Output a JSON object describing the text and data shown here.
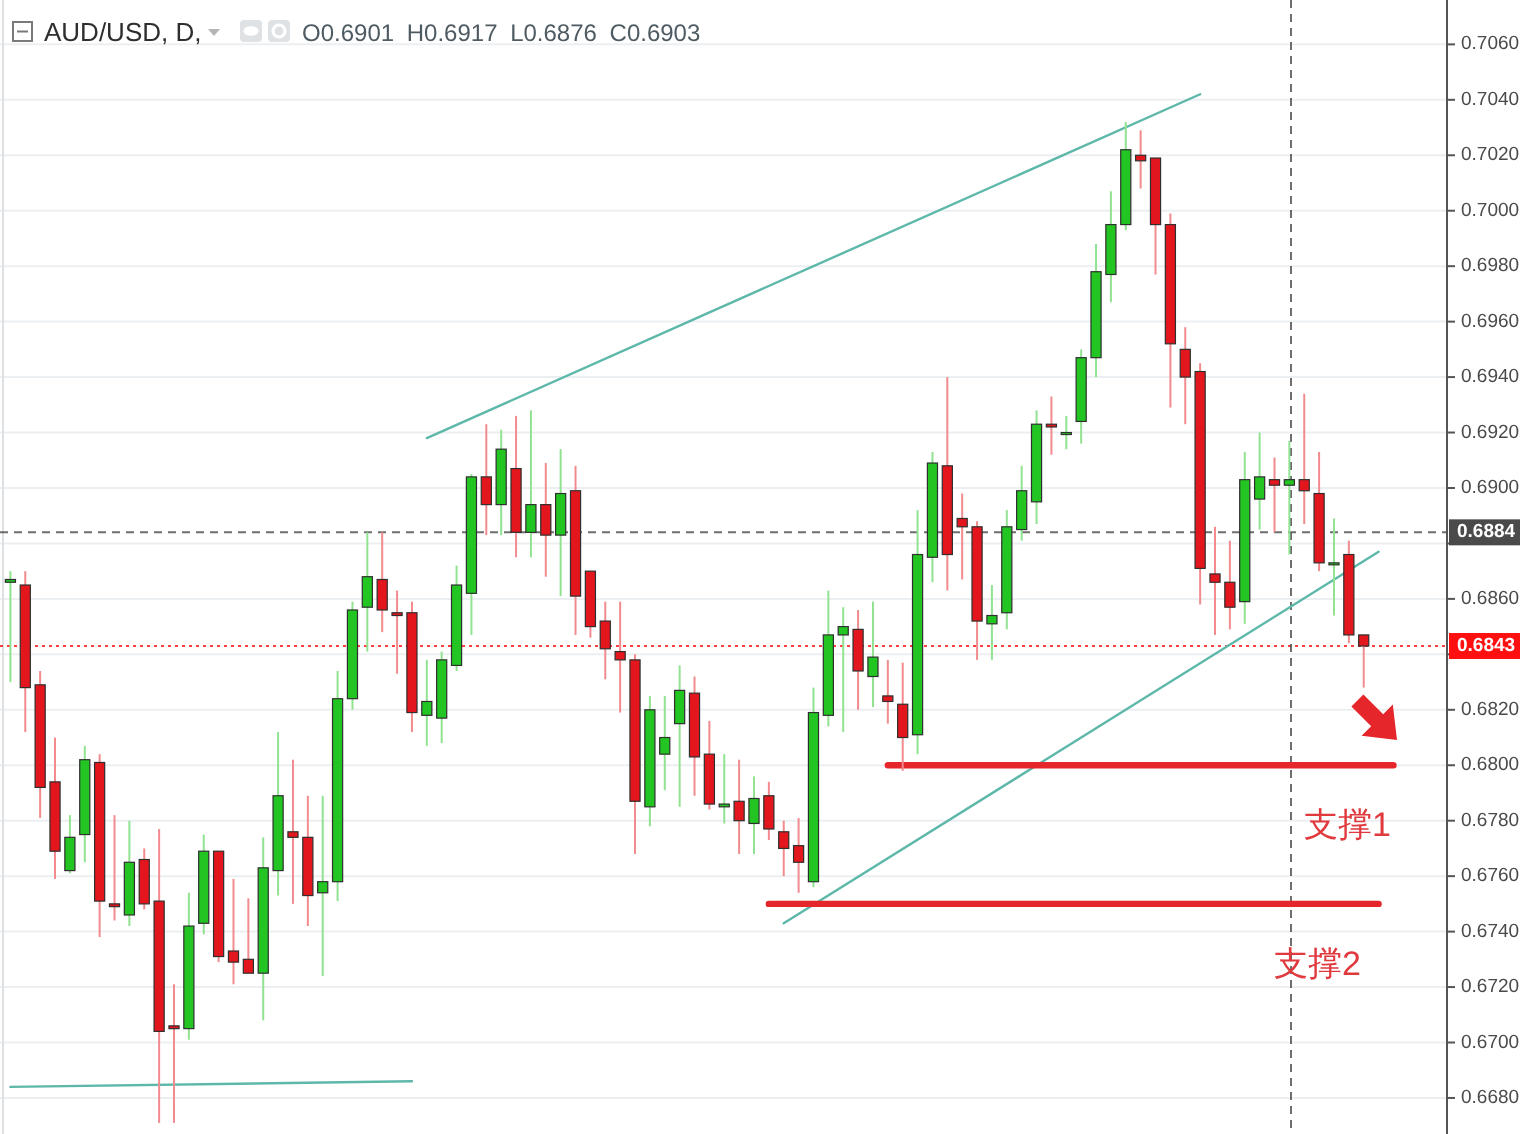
{
  "chart_data": {
    "type": "candlestick",
    "title": "AUD/USD, D,",
    "subtitle": "O0.6901 H0.6917 L0.6876 C0.6903",
    "categories": [
      null,
      null,
      null,
      null,
      null,
      null,
      null,
      null,
      null,
      null,
      null,
      null,
      null,
      null,
      null,
      null,
      null,
      null,
      null,
      null,
      null,
      null,
      null,
      null,
      null,
      null,
      null,
      null,
      null,
      null,
      null,
      null,
      null,
      null,
      null,
      null,
      null,
      null,
      null,
      null,
      null,
      null,
      null,
      null,
      null,
      null,
      null,
      null,
      null,
      null,
      null,
      null,
      null,
      null,
      null,
      null,
      null,
      null,
      null,
      null,
      null,
      null,
      null,
      null,
      null,
      null,
      null,
      null,
      null,
      null,
      null,
      null,
      null,
      null,
      null,
      null,
      null,
      null,
      null,
      null,
      null,
      null,
      null,
      null,
      null,
      null,
      null,
      null,
      null,
      null,
      null,
      null,
      null,
      null,
      null,
      null,
      null
    ],
    "ohlc": [
      [
        0.6866,
        0.687,
        0.683,
        0.6867
      ],
      [
        0.6865,
        0.687,
        0.6812,
        0.6828
      ],
      [
        0.6829,
        0.6834,
        0.6781,
        0.6792
      ],
      [
        0.6794,
        0.681,
        0.6759,
        0.6769
      ],
      [
        0.6762,
        0.6782,
        0.6761,
        0.6774
      ],
      [
        0.6775,
        0.6807,
        0.6765,
        0.6802
      ],
      [
        0.6801,
        0.6804,
        0.6738,
        0.6751
      ],
      [
        0.675,
        0.6782,
        0.6744,
        0.6749
      ],
      [
        0.6746,
        0.678,
        0.6742,
        0.6765
      ],
      [
        0.6766,
        0.677,
        0.6748,
        0.675
      ],
      [
        0.6751,
        0.6777,
        0.6671,
        0.6704
      ],
      [
        0.6706,
        0.6721,
        0.6671,
        0.6705
      ],
      [
        0.6705,
        0.6754,
        0.6701,
        0.6742
      ],
      [
        0.6743,
        0.6775,
        0.6739,
        0.6769
      ],
      [
        0.6769,
        0.6769,
        0.6729,
        0.6731
      ],
      [
        0.6733,
        0.6759,
        0.6721,
        0.6729
      ],
      [
        0.673,
        0.6752,
        0.6725,
        0.6725
      ],
      [
        0.6725,
        0.6774,
        0.6708,
        0.6763
      ],
      [
        0.6762,
        0.6812,
        0.6753,
        0.6789
      ],
      [
        0.6776,
        0.6802,
        0.675,
        0.6774
      ],
      [
        0.6774,
        0.6789,
        0.6742,
        0.6753
      ],
      [
        0.6754,
        0.6789,
        0.6724,
        0.6758
      ],
      [
        0.6758,
        0.6834,
        0.6751,
        0.6824
      ],
      [
        0.6824,
        0.6859,
        0.682,
        0.6856
      ],
      [
        0.6857,
        0.6884,
        0.6841,
        0.6868
      ],
      [
        0.6867,
        0.6884,
        0.6848,
        0.6856
      ],
      [
        0.6855,
        0.6863,
        0.6833,
        0.6854
      ],
      [
        0.6855,
        0.6859,
        0.6812,
        0.6819
      ],
      [
        0.6818,
        0.6838,
        0.6807,
        0.6823
      ],
      [
        0.6817,
        0.6841,
        0.6808,
        0.6838
      ],
      [
        0.6836,
        0.6872,
        0.6834,
        0.6865
      ],
      [
        0.6862,
        0.6905,
        0.6847,
        0.6904
      ],
      [
        0.6904,
        0.6923,
        0.6883,
        0.6894
      ],
      [
        0.6894,
        0.6921,
        0.6883,
        0.6914
      ],
      [
        0.6907,
        0.6926,
        0.6875,
        0.6884
      ],
      [
        0.6884,
        0.6928,
        0.6875,
        0.6894
      ],
      [
        0.6894,
        0.6909,
        0.6868,
        0.6883
      ],
      [
        0.6883,
        0.6914,
        0.6861,
        0.6898
      ],
      [
        0.6899,
        0.6908,
        0.6847,
        0.6861
      ],
      [
        0.687,
        0.687,
        0.6846,
        0.685
      ],
      [
        0.6852,
        0.6859,
        0.6831,
        0.6842
      ],
      [
        0.6841,
        0.6859,
        0.6819,
        0.6838
      ],
      [
        0.6838,
        0.684,
        0.6768,
        0.6787
      ],
      [
        0.6785,
        0.6825,
        0.6778,
        0.682
      ],
      [
        0.6804,
        0.6825,
        0.6791,
        0.681
      ],
      [
        0.6815,
        0.6836,
        0.6785,
        0.6827
      ],
      [
        0.6826,
        0.6832,
        0.6789,
        0.6803
      ],
      [
        0.6804,
        0.6816,
        0.6784,
        0.6786
      ],
      [
        0.6785,
        0.6804,
        0.6779,
        0.6786
      ],
      [
        0.6787,
        0.6802,
        0.6768,
        0.678
      ],
      [
        0.6779,
        0.6796,
        0.6768,
        0.6788
      ],
      [
        0.6789,
        0.6794,
        0.6773,
        0.6777
      ],
      [
        0.6776,
        0.678,
        0.676,
        0.677
      ],
      [
        0.6771,
        0.6781,
        0.6754,
        0.6765
      ],
      [
        0.6758,
        0.6828,
        0.6756,
        0.6819
      ],
      [
        0.6818,
        0.6863,
        0.6814,
        0.6847
      ],
      [
        0.6847,
        0.6857,
        0.6812,
        0.685
      ],
      [
        0.6849,
        0.6856,
        0.682,
        0.6834
      ],
      [
        0.6832,
        0.6859,
        0.6821,
        0.6839
      ],
      [
        0.6825,
        0.6838,
        0.6815,
        0.6823
      ],
      [
        0.6822,
        0.6837,
        0.6798,
        0.681
      ],
      [
        0.6811,
        0.6892,
        0.6804,
        0.6876
      ],
      [
        0.6875,
        0.6913,
        0.6866,
        0.6909
      ],
      [
        0.6908,
        0.694,
        0.6863,
        0.6876
      ],
      [
        0.6889,
        0.6898,
        0.6867,
        0.6886
      ],
      [
        0.6886,
        0.6888,
        0.6838,
        0.6852
      ],
      [
        0.6851,
        0.6865,
        0.6838,
        0.6854
      ],
      [
        0.6855,
        0.6892,
        0.6849,
        0.6886
      ],
      [
        0.6885,
        0.6908,
        0.6881,
        0.6899
      ],
      [
        0.6895,
        0.6928,
        0.6887,
        0.6923
      ],
      [
        0.6923,
        0.6933,
        0.6912,
        0.6922
      ],
      [
        0.692,
        0.6926,
        0.6914,
        0.692
      ],
      [
        0.6924,
        0.695,
        0.6916,
        0.6947
      ],
      [
        0.6947,
        0.6988,
        0.694,
        0.6978
      ],
      [
        0.6977,
        0.7007,
        0.6967,
        0.6995
      ],
      [
        0.6995,
        0.7032,
        0.6993,
        0.7022
      ],
      [
        0.702,
        0.7029,
        0.7008,
        0.7018
      ],
      [
        0.7019,
        0.7019,
        0.6977,
        0.6995
      ],
      [
        0.6995,
        0.6999,
        0.6929,
        0.6952
      ],
      [
        0.695,
        0.6958,
        0.6923,
        0.694
      ],
      [
        0.6942,
        0.6945,
        0.6858,
        0.6871
      ],
      [
        0.6869,
        0.6886,
        0.6847,
        0.6866
      ],
      [
        0.6866,
        0.6881,
        0.6849,
        0.6857
      ],
      [
        0.6859,
        0.6913,
        0.6851,
        0.6903
      ],
      [
        0.6896,
        0.692,
        0.6885,
        0.6904
      ],
      [
        0.6903,
        0.6911,
        0.6884,
        0.6901
      ],
      [
        0.6901,
        0.6917,
        0.6876,
        0.6903
      ],
      [
        0.6903,
        0.6934,
        0.6887,
        0.6899
      ],
      [
        0.6898,
        0.6913,
        0.687,
        0.6873
      ],
      [
        0.6873,
        0.6889,
        0.6854,
        0.6873
      ],
      [
        0.6876,
        0.6881,
        0.6844,
        0.6847
      ],
      [
        0.6847,
        0.6847,
        0.6828,
        0.6843
      ],
      null,
      null,
      null,
      null,
      null
    ],
    "colors": [
      "#22c522",
      "#e3161d",
      "#e3161d",
      "#e3161d",
      "#22c522",
      "#22c522",
      "#e3161d",
      "#e3161d",
      "#22c522",
      "#e3161d",
      "#e3161d",
      "#e3161d",
      "#22c522",
      "#22c522",
      "#e3161d",
      "#e3161d",
      "#e3161d",
      "#22c522",
      "#22c522",
      "#e3161d",
      "#e3161d",
      "#22c522",
      "#22c522",
      "#22c522",
      "#22c522",
      "#e3161d",
      "#e3161d",
      "#e3161d",
      "#22c522",
      "#22c522",
      "#22c522",
      "#22c522",
      "#e3161d",
      "#22c522",
      "#e3161d",
      "#22c522",
      "#e3161d",
      "#22c522",
      "#e3161d",
      "#e3161d",
      "#e3161d",
      "#e3161d",
      "#e3161d",
      "#22c522",
      "#22c522",
      "#22c522",
      "#e3161d",
      "#e3161d",
      "#22c522",
      "#e3161d",
      "#22c522",
      "#e3161d",
      "#e3161d",
      "#e3161d",
      "#22c522",
      "#22c522",
      "#22c522",
      "#e3161d",
      "#22c522",
      "#e3161d",
      "#e3161d",
      "#22c522",
      "#22c522",
      "#e3161d",
      "#e3161d",
      "#e3161d",
      "#22c522",
      "#22c522",
      "#22c522",
      "#22c522",
      "#e3161d",
      "#22c522",
      "#22c522",
      "#22c522",
      "#22c522",
      "#22c522",
      "#e3161d",
      "#e3161d",
      "#e3161d",
      "#e3161d",
      "#e3161d",
      "#e3161d",
      "#e3161d",
      "#22c522",
      "#22c522",
      "#e3161d",
      "#22c522",
      "#e3161d",
      "#e3161d",
      "#22c522",
      "#e3161d",
      "#e3161d",
      null,
      null,
      null,
      null,
      null
    ],
    "ylim": [
      0.6667,
      0.7076
    ],
    "yticks": [
      {
        "value": 0.668,
        "label": "0.6680"
      },
      {
        "value": 0.67,
        "label": "0.6700"
      },
      {
        "value": 0.672,
        "label": "0.6720"
      },
      {
        "value": 0.674,
        "label": "0.6740"
      },
      {
        "value": 0.676,
        "label": "0.6760"
      },
      {
        "value": 0.678,
        "label": "0.6780"
      },
      {
        "value": 0.68,
        "label": "0.6800"
      },
      {
        "value": 0.682,
        "label": "0.6820"
      },
      {
        "value": 0.684,
        "label": null
      },
      {
        "value": 0.686,
        "label": "0.6860"
      },
      {
        "value": 0.688,
        "label": null
      },
      {
        "value": 0.69,
        "label": "0.6900"
      },
      {
        "value": 0.692,
        "label": "0.6920"
      },
      {
        "value": 0.694,
        "label": "0.6940"
      },
      {
        "value": 0.696,
        "label": "0.6960"
      },
      {
        "value": 0.698,
        "label": "0.6980"
      },
      {
        "value": 0.7,
        "label": "0.7000"
      },
      {
        "value": 0.702,
        "label": "0.7020"
      },
      {
        "value": 0.704,
        "label": "0.7040"
      },
      {
        "value": 0.706,
        "label": "0.7060"
      }
    ],
    "grid": "y",
    "tick_labels": "y",
    "ref_lines": [
      {
        "axis": "y",
        "value": 0.6884,
        "label": "0.6884",
        "color": "#4a4a4a",
        "line_style": "dashed"
      },
      {
        "axis": "y",
        "value": 0.6843,
        "label": "0.6843",
        "color": "#ff1010",
        "line_style": "dotted"
      }
    ],
    "series": [
      {
        "type": "line",
        "color": "#5db8aa",
        "values": [
          null,
          null,
          null,
          null,
          null,
          null,
          null,
          null,
          null,
          null,
          null,
          null,
          null,
          null,
          null,
          null,
          null,
          null,
          null,
          null,
          null,
          null,
          null,
          null,
          null,
          null,
          null,
          null,
          0.6918,
          null,
          null,
          null,
          null,
          null,
          null,
          null,
          null,
          null,
          null,
          null,
          null,
          null,
          null,
          null,
          null,
          null,
          null,
          null,
          null,
          null,
          null,
          null,
          null,
          null,
          null,
          null,
          null,
          null,
          null,
          null,
          null,
          null,
          null,
          null,
          null,
          null,
          null,
          null,
          null,
          null,
          null,
          null,
          null,
          null,
          null,
          null,
          null,
          null,
          null,
          null,
          0.7042,
          null,
          null,
          null,
          null,
          null,
          null,
          null,
          null,
          null,
          null,
          null,
          null,
          null,
          null,
          null,
          null
        ]
      },
      {
        "type": "line",
        "color": "#5db8aa",
        "values": [
          null,
          null,
          null,
          null,
          null,
          null,
          null,
          null,
          null,
          null,
          null,
          null,
          null,
          null,
          null,
          null,
          null,
          null,
          null,
          null,
          null,
          null,
          null,
          null,
          null,
          null,
          null,
          null,
          null,
          null,
          null,
          null,
          null,
          null,
          null,
          null,
          null,
          null,
          null,
          null,
          null,
          null,
          null,
          null,
          null,
          null,
          null,
          null,
          null,
          null,
          null,
          null,
          0.6743,
          null,
          null,
          null,
          null,
          null,
          null,
          null,
          null,
          null,
          null,
          null,
          null,
          null,
          null,
          null,
          null,
          null,
          null,
          null,
          null,
          null,
          null,
          null,
          null,
          null,
          null,
          null,
          null,
          null,
          null,
          null,
          null,
          null,
          null,
          null,
          null,
          null,
          null,
          null,
          0.6877,
          null,
          null,
          null,
          null
        ]
      },
      {
        "type": "line",
        "color": "#5db8aa",
        "values": [
          0.6684,
          null,
          null,
          null,
          null,
          null,
          null,
          null,
          null,
          null,
          null,
          null,
          null,
          null,
          null,
          null,
          null,
          null,
          null,
          null,
          null,
          null,
          null,
          null,
          null,
          null,
          null,
          0.6686,
          null,
          null,
          null,
          null,
          null,
          null,
          null,
          null,
          null,
          null,
          null,
          null,
          null,
          null,
          null,
          null,
          null,
          null,
          null,
          null,
          null,
          null,
          null,
          null,
          null,
          null,
          null,
          null,
          null,
          null,
          null,
          null,
          null,
          null,
          null,
          null,
          null,
          null,
          null,
          null,
          null,
          null,
          null,
          null,
          null,
          null,
          null,
          null,
          null,
          null,
          null,
          null,
          null,
          null,
          null,
          null,
          null,
          null,
          null,
          null,
          null,
          null,
          null,
          null,
          null,
          null,
          null,
          null,
          null
        ]
      },
      {
        "type": "line",
        "color": "#e5262b",
        "values": [
          null,
          null,
          null,
          null,
          null,
          null,
          null,
          null,
          null,
          null,
          null,
          null,
          null,
          null,
          null,
          null,
          null,
          null,
          null,
          null,
          null,
          null,
          null,
          null,
          null,
          null,
          null,
          null,
          null,
          null,
          null,
          null,
          null,
          null,
          null,
          null,
          null,
          null,
          null,
          null,
          null,
          null,
          null,
          null,
          null,
          null,
          null,
          null,
          null,
          null,
          null,
          null,
          null,
          null,
          null,
          null,
          null,
          null,
          null,
          0.68,
          null,
          null,
          null,
          null,
          null,
          null,
          null,
          null,
          null,
          null,
          null,
          null,
          null,
          null,
          null,
          null,
          null,
          null,
          null,
          null,
          null,
          null,
          null,
          null,
          null,
          null,
          null,
          null,
          null,
          null,
          null,
          null,
          null,
          0.68,
          null,
          null,
          null
        ]
      },
      {
        "type": "line",
        "color": "#e5262b",
        "values": [
          null,
          null,
          null,
          null,
          null,
          null,
          null,
          null,
          null,
          null,
          null,
          null,
          null,
          null,
          null,
          null,
          null,
          null,
          null,
          null,
          null,
          null,
          null,
          null,
          null,
          null,
          null,
          null,
          null,
          null,
          null,
          null,
          null,
          null,
          null,
          null,
          null,
          null,
          null,
          null,
          null,
          null,
          null,
          null,
          null,
          null,
          null,
          null,
          null,
          null,
          null,
          0.675,
          null,
          null,
          null,
          null,
          null,
          null,
          null,
          null,
          null,
          null,
          null,
          null,
          null,
          null,
          null,
          null,
          null,
          null,
          null,
          null,
          null,
          null,
          null,
          null,
          null,
          null,
          null,
          null,
          null,
          null,
          null,
          null,
          null,
          null,
          null,
          null,
          null,
          null,
          null,
          null,
          0.675,
          null,
          null,
          null,
          null
        ]
      }
    ],
    "annotations": [
      {
        "text": "支撑1",
        "y": 0.68
      },
      {
        "text": "支撑2",
        "y": 0.675
      }
    ]
  }
}
